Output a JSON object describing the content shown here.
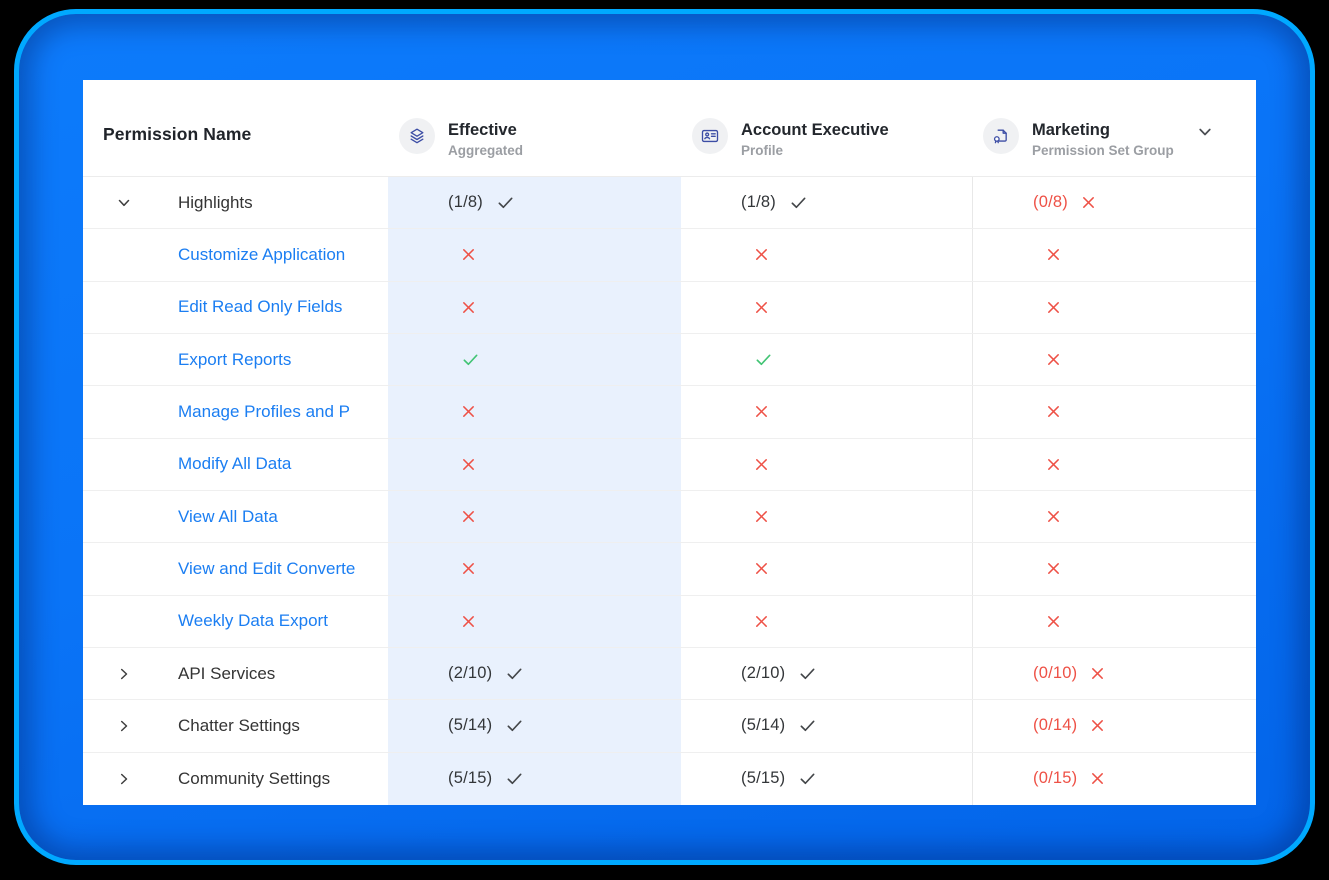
{
  "colors": {
    "frame_fill": "#0a74f7",
    "frame_edge": "#00a9ff",
    "effective_band": "#e9f1fd",
    "link_blue": "#1b7ef2",
    "denied_red": "#ee5146",
    "granted_green": "#42c474",
    "neutral_mark": "#434649",
    "icon_indigo": "#3c4da5"
  },
  "header": {
    "permission_name_label": "Permission Name",
    "columns": [
      {
        "id": "effective",
        "label": "Effective",
        "sublabel": "Aggregated",
        "icon": "layers-icon"
      },
      {
        "id": "account-executive",
        "label": "Account Executive",
        "sublabel": "Profile",
        "icon": "contact-card-icon"
      },
      {
        "id": "marketing",
        "label": "Marketing",
        "sublabel": "Permission Set Group",
        "icon": "permission-set-group-icon",
        "dropdown_chevron": "chevron-down-icon"
      }
    ]
  },
  "table": {
    "rows": [
      {
        "name": "Highlights",
        "style": "group",
        "chevron": "down",
        "cells": [
          {
            "label": "(1/8)",
            "mark": "check",
            "mark_color": "dark"
          },
          {
            "label": "(1/8)",
            "mark": "check",
            "mark_color": "dark"
          },
          {
            "label": "(0/8)",
            "label_color": "red",
            "mark": "cross",
            "mark_color": "red"
          }
        ]
      },
      {
        "name": "Customize Application",
        "style": "link",
        "chevron": "none",
        "cells": [
          {
            "mark": "cross",
            "mark_color": "red"
          },
          {
            "mark": "cross",
            "mark_color": "red"
          },
          {
            "mark": "cross",
            "mark_color": "red"
          }
        ]
      },
      {
        "name": "Edit Read Only Fields",
        "style": "link",
        "chevron": "none",
        "cells": [
          {
            "mark": "cross",
            "mark_color": "red"
          },
          {
            "mark": "cross",
            "mark_color": "red"
          },
          {
            "mark": "cross",
            "mark_color": "red"
          }
        ]
      },
      {
        "name": "Export Reports",
        "style": "link",
        "chevron": "none",
        "cells": [
          {
            "mark": "check",
            "mark_color": "green"
          },
          {
            "mark": "check",
            "mark_color": "green"
          },
          {
            "mark": "cross",
            "mark_color": "red"
          }
        ]
      },
      {
        "name": "Manage Profiles and P",
        "style": "link",
        "chevron": "none",
        "cells": [
          {
            "mark": "cross",
            "mark_color": "red"
          },
          {
            "mark": "cross",
            "mark_color": "red"
          },
          {
            "mark": "cross",
            "mark_color": "red"
          }
        ]
      },
      {
        "name": "Modify All Data",
        "style": "link",
        "chevron": "none",
        "cells": [
          {
            "mark": "cross",
            "mark_color": "red"
          },
          {
            "mark": "cross",
            "mark_color": "red"
          },
          {
            "mark": "cross",
            "mark_color": "red"
          }
        ]
      },
      {
        "name": "View All Data",
        "style": "link",
        "chevron": "none",
        "cells": [
          {
            "mark": "cross",
            "mark_color": "red"
          },
          {
            "mark": "cross",
            "mark_color": "red"
          },
          {
            "mark": "cross",
            "mark_color": "red"
          }
        ]
      },
      {
        "name": "View and Edit Converte",
        "style": "link",
        "chevron": "none",
        "cells": [
          {
            "mark": "cross",
            "mark_color": "red"
          },
          {
            "mark": "cross",
            "mark_color": "red"
          },
          {
            "mark": "cross",
            "mark_color": "red"
          }
        ]
      },
      {
        "name": "Weekly Data Export",
        "style": "link",
        "chevron": "none",
        "cells": [
          {
            "mark": "cross",
            "mark_color": "red"
          },
          {
            "mark": "cross",
            "mark_color": "red"
          },
          {
            "mark": "cross",
            "mark_color": "red"
          }
        ]
      },
      {
        "name": "API Services",
        "style": "group",
        "chevron": "right",
        "cells": [
          {
            "label": "(2/10)",
            "mark": "check",
            "mark_color": "dark"
          },
          {
            "label": "(2/10)",
            "mark": "check",
            "mark_color": "dark"
          },
          {
            "label": "(0/10)",
            "label_color": "red",
            "mark": "cross",
            "mark_color": "red"
          }
        ]
      },
      {
        "name": "Chatter Settings",
        "style": "group",
        "chevron": "right",
        "cells": [
          {
            "label": "(5/14)",
            "mark": "check",
            "mark_color": "dark"
          },
          {
            "label": "(5/14)",
            "mark": "check",
            "mark_color": "dark"
          },
          {
            "label": "(0/14)",
            "label_color": "red",
            "mark": "cross",
            "mark_color": "red"
          }
        ]
      },
      {
        "name": "Community Settings",
        "style": "group",
        "chevron": "right",
        "cells": [
          {
            "label": "(5/15)",
            "mark": "check",
            "mark_color": "dark"
          },
          {
            "label": "(5/15)",
            "mark": "check",
            "mark_color": "dark"
          },
          {
            "label": "(0/15)",
            "label_color": "red",
            "mark": "cross",
            "mark_color": "red"
          }
        ]
      }
    ]
  }
}
